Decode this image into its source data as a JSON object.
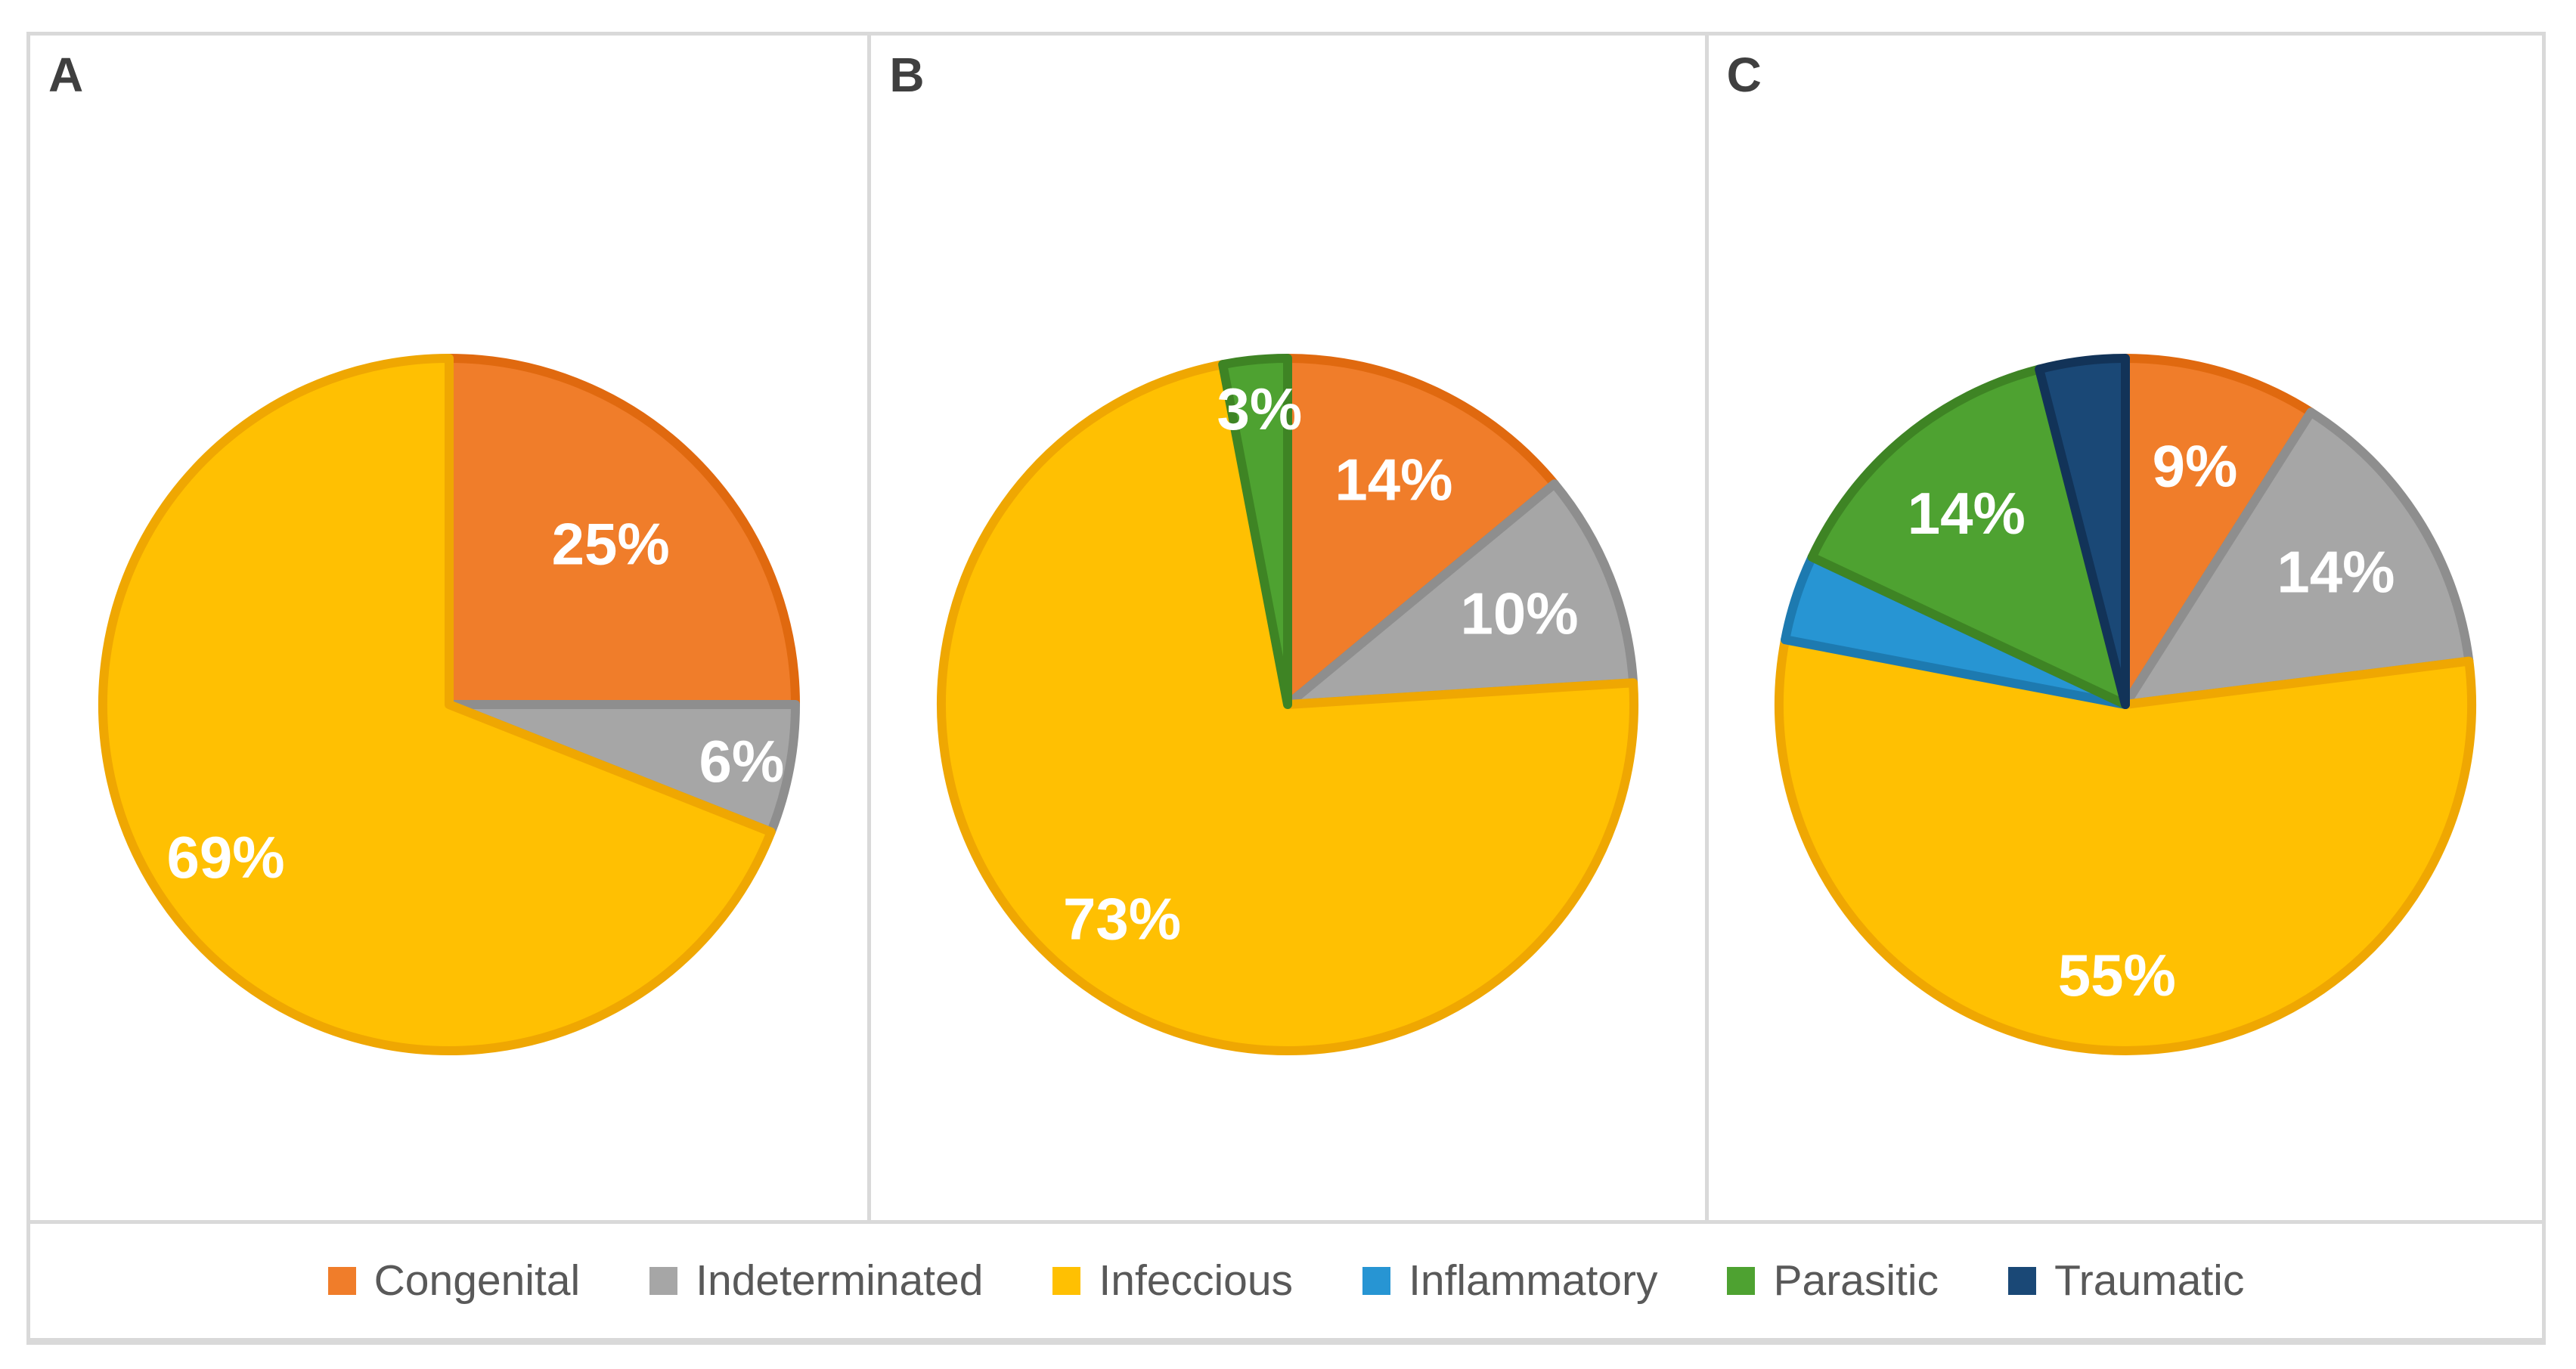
{
  "figure": {
    "background": "#ffffff",
    "frame_color": "#D9D9D9",
    "panel_letter_color": "#3F3F3F",
    "data_label_color": "#ffffff",
    "legend_text_color": "#595959"
  },
  "series_colors": {
    "Congenital": {
      "fill": "#F07D2A",
      "stroke": "#E0690F"
    },
    "Indeterminated": {
      "fill": "#A6A6A6",
      "stroke": "#8E8E8E"
    },
    "Infeccious": {
      "fill": "#FFC002",
      "stroke": "#EFA702"
    },
    "Inflammatory": {
      "fill": "#2795D3",
      "stroke": "#1D7AB0"
    },
    "Parasitic": {
      "fill": "#4EA231",
      "stroke": "#3E8424"
    },
    "Traumatic": {
      "fill": "#1A4876",
      "stroke": "#123358"
    }
  },
  "legend": {
    "items": [
      {
        "label": "Congenital",
        "color": "#F07D2A"
      },
      {
        "label": "Indeterminated",
        "color": "#A6A6A6"
      },
      {
        "label": "Infeccious",
        "color": "#FFC002"
      },
      {
        "label": "Inflammatory",
        "color": "#2795D3"
      },
      {
        "label": "Parasitic",
        "color": "#4EA231"
      },
      {
        "label": "Traumatic",
        "color": "#1A4876"
      }
    ]
  },
  "chart_data": [
    {
      "type": "pie",
      "panel": "A",
      "start_angle_deg": 0,
      "direction": "clockwise",
      "legend_position": "bottom-shared",
      "slices": [
        {
          "category": "Congenital",
          "value": 25,
          "data_label": "25%"
        },
        {
          "category": "Indeterminated",
          "value": 6,
          "data_label": "6%"
        },
        {
          "category": "Infeccious",
          "value": 69,
          "data_label": "69%"
        }
      ]
    },
    {
      "type": "pie",
      "panel": "B",
      "start_angle_deg": 0,
      "direction": "clockwise",
      "legend_position": "bottom-shared",
      "slices": [
        {
          "category": "Congenital",
          "value": 14,
          "data_label": "14%"
        },
        {
          "category": "Indeterminated",
          "value": 10,
          "data_label": "10%"
        },
        {
          "category": "Infeccious",
          "value": 73,
          "data_label": "73%"
        },
        {
          "category": "Parasitic",
          "value": 3,
          "data_label": "3%"
        }
      ]
    },
    {
      "type": "pie",
      "panel": "C",
      "start_angle_deg": 0,
      "direction": "clockwise",
      "legend_position": "bottom-shared",
      "slices": [
        {
          "category": "Congenital",
          "value": 9,
          "data_label": "9%"
        },
        {
          "category": "Indeterminated",
          "value": 14,
          "data_label": "14%"
        },
        {
          "category": "Infeccious",
          "value": 55,
          "data_label": "55%"
        },
        {
          "category": "Inflammatory",
          "value": 4,
          "data_label": ""
        },
        {
          "category": "Parasitic",
          "value": 14,
          "data_label": "14%"
        },
        {
          "category": "Traumatic",
          "value": 4,
          "data_label": ""
        }
      ]
    }
  ]
}
